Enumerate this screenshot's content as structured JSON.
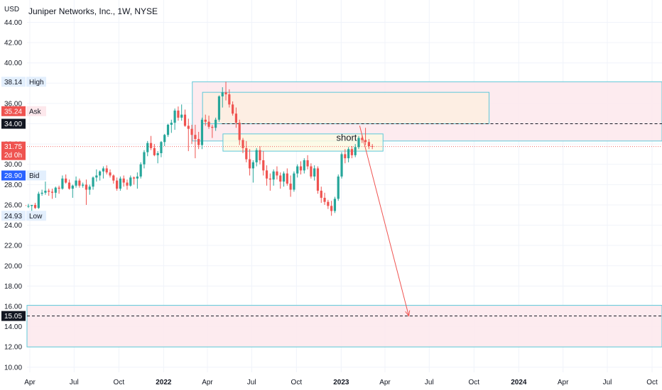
{
  "title": "Juniper Networks, Inc., 1W, NYSE",
  "currency": "USD",
  "colors": {
    "up": "#26a69a",
    "down": "#ef5350",
    "grid": "#f0f3fa",
    "zone_stroke": "#5ec8d8",
    "zone_fill_pink": "#fde8ec",
    "zone_fill_orange": "#fdeee0",
    "zone_fill_yellow": "#fdf9e3",
    "ask": "#ef5350",
    "bid": "#2962ff",
    "arrow": "#ef5350"
  },
  "chart_data": {
    "type": "candlestick",
    "interval": "1W",
    "ylim": [
      9.5,
      46.2
    ],
    "y_ticks": [
      "10.00",
      "12.00",
      "14.00",
      "16.00",
      "18.00",
      "20.00",
      "22.00",
      "24.00",
      "26.00",
      "28.00",
      "30.00",
      "32.00",
      "34.00",
      "36.00",
      "38.00",
      "40.00",
      "42.00",
      "44.00"
    ],
    "x_ticks": [
      "Apr",
      "Jul",
      "Oct",
      "2022",
      "Apr",
      "Jul",
      "Oct",
      "2023",
      "Apr",
      "Jul",
      "Oct",
      "2024",
      "Apr",
      "Jul",
      "Oct"
    ],
    "x_tick_dates": [
      "2021-04-01",
      "2021-07-01",
      "2021-10-01",
      "2022-01-01",
      "2022-04-01",
      "2022-07-01",
      "2022-10-01",
      "2023-01-01",
      "2023-04-01",
      "2023-07-01",
      "2023-10-01",
      "2024-01-01",
      "2024-04-01",
      "2024-07-01",
      "2024-10-01"
    ],
    "bold_ticks": [
      "2022",
      "2023",
      "2024"
    ],
    "price_labels": [
      {
        "value": 38.14,
        "label": "High",
        "style": "high"
      },
      {
        "value": 35.24,
        "label": "Ask",
        "style": "ask"
      },
      {
        "value": 34.0,
        "label": "",
        "style": "black"
      },
      {
        "value": 31.75,
        "label": "2d 0h",
        "style": "current"
      },
      {
        "value": 28.9,
        "label": "Bid",
        "style": "bid"
      },
      {
        "value": 24.93,
        "label": "Low",
        "style": "low"
      },
      {
        "value": 15.05,
        "label": "",
        "style": "black"
      }
    ],
    "annotations": [
      {
        "text": "short"
      }
    ],
    "zones": [
      {
        "from": "2022-03-01",
        "to": "2024-10-31",
        "top": 38.14,
        "bottom": 32.3,
        "fill": "pink"
      },
      {
        "from": "2022-03-22",
        "to": "2023-11-01",
        "top": 37.1,
        "bottom": 34.0,
        "fill": "orange"
      },
      {
        "from": "2022-05-03",
        "to": "2023-03-28",
        "top": 33.0,
        "bottom": 31.3,
        "fill": "yellow"
      },
      {
        "from": "2021-03-01",
        "to": "2024-10-31",
        "top": 16.1,
        "bottom": 12.0,
        "fill": "pink"
      }
    ],
    "levels": [
      {
        "value": 34.0,
        "from": "2022-05-01",
        "style": "dashed"
      },
      {
        "value": 15.05,
        "from": "2021-03-01",
        "style": "dashed"
      }
    ],
    "arrow": {
      "from_date": "2023-02-08",
      "from_value": 33.8,
      "to_date": "2023-05-20",
      "to_value": 15.05
    },
    "start_date": "2021-03-22",
    "candles": [
      [
        26.0,
        26.1,
        25.7,
        25.9
      ],
      [
        25.9,
        26.1,
        25.7,
        25.9
      ],
      [
        25.9,
        26.0,
        25.4,
        26.0
      ],
      [
        26.0,
        26.2,
        25.6,
        25.7
      ],
      [
        25.7,
        27.3,
        25.6,
        27.1
      ],
      [
        27.1,
        27.5,
        26.9,
        27.2
      ],
      [
        27.2,
        28.3,
        27.0,
        27.4
      ],
      [
        27.4,
        27.6,
        26.9,
        27.3
      ],
      [
        27.3,
        27.6,
        26.6,
        27.2
      ],
      [
        27.2,
        27.8,
        26.7,
        27.7
      ],
      [
        27.7,
        27.9,
        27.1,
        27.6
      ],
      [
        27.6,
        28.9,
        27.5,
        28.6
      ],
      [
        28.6,
        29.0,
        28.1,
        28.2
      ],
      [
        28.2,
        28.5,
        27.5,
        27.6
      ],
      [
        27.6,
        28.0,
        26.7,
        27.9
      ],
      [
        27.9,
        28.8,
        27.7,
        28.4
      ],
      [
        28.4,
        28.6,
        27.7,
        27.9
      ],
      [
        27.9,
        28.2,
        27.7,
        28.0
      ],
      [
        28.0,
        28.5,
        26.0,
        27.5
      ],
      [
        27.5,
        28.0,
        27.0,
        27.8
      ],
      [
        27.8,
        28.8,
        27.5,
        28.7
      ],
      [
        28.7,
        29.5,
        28.3,
        28.9
      ],
      [
        28.9,
        29.4,
        28.4,
        29.3
      ],
      [
        29.3,
        29.8,
        28.6,
        29.6
      ],
      [
        29.6,
        29.9,
        29.0,
        29.2
      ],
      [
        29.2,
        29.5,
        28.7,
        28.9
      ],
      [
        28.9,
        29.0,
        28.1,
        28.4
      ],
      [
        28.4,
        28.7,
        27.4,
        27.6
      ],
      [
        27.6,
        28.8,
        27.4,
        28.6
      ],
      [
        28.6,
        28.9,
        27.8,
        28.2
      ],
      [
        28.2,
        28.5,
        27.5,
        27.9
      ],
      [
        27.9,
        28.9,
        27.8,
        28.7
      ],
      [
        28.7,
        28.8,
        28.0,
        28.6
      ],
      [
        28.6,
        29.2,
        27.6,
        28.8
      ],
      [
        28.8,
        30.2,
        28.6,
        30.0
      ],
      [
        30.0,
        31.4,
        29.6,
        31.2
      ],
      [
        31.2,
        32.3,
        30.8,
        32.1
      ],
      [
        32.1,
        32.8,
        31.4,
        31.6
      ],
      [
        31.6,
        32.0,
        30.8,
        30.9
      ],
      [
        30.9,
        31.3,
        30.1,
        31.1
      ],
      [
        31.1,
        32.3,
        30.7,
        32.2
      ],
      [
        32.2,
        33.0,
        31.8,
        32.9
      ],
      [
        32.9,
        34.0,
        32.7,
        33.9
      ],
      [
        33.9,
        34.4,
        33.1,
        34.1
      ],
      [
        34.1,
        35.5,
        33.4,
        35.3
      ],
      [
        35.3,
        35.7,
        34.3,
        34.6
      ],
      [
        34.6,
        35.9,
        34.3,
        34.9
      ],
      [
        34.9,
        35.4,
        33.7,
        33.8
      ],
      [
        33.8,
        34.5,
        31.3,
        33.5
      ],
      [
        33.5,
        33.9,
        32.0,
        32.9
      ],
      [
        32.9,
        33.9,
        30.6,
        32.5
      ],
      [
        32.5,
        33.2,
        31.5,
        31.9
      ],
      [
        31.9,
        34.6,
        31.5,
        34.4
      ],
      [
        34.4,
        34.9,
        33.8,
        34.2
      ],
      [
        34.2,
        34.8,
        33.5,
        33.7
      ],
      [
        33.7,
        33.9,
        32.6,
        33.6
      ],
      [
        33.6,
        34.6,
        33.3,
        34.4
      ],
      [
        34.4,
        36.8,
        34.2,
        36.7
      ],
      [
        36.7,
        37.6,
        35.6,
        37.1
      ],
      [
        37.1,
        38.14,
        36.3,
        36.9
      ],
      [
        36.9,
        37.4,
        35.6,
        35.9
      ],
      [
        35.9,
        36.2,
        34.8,
        35.0
      ],
      [
        35.0,
        35.6,
        33.6,
        34.1
      ],
      [
        34.1,
        34.4,
        31.9,
        32.4
      ],
      [
        32.4,
        32.6,
        31.1,
        31.6
      ],
      [
        31.6,
        32.3,
        30.2,
        30.5
      ],
      [
        30.5,
        31.5,
        28.9,
        29.6
      ],
      [
        29.6,
        30.4,
        28.2,
        30.2
      ],
      [
        30.2,
        31.6,
        29.8,
        31.4
      ],
      [
        31.4,
        31.8,
        30.0,
        30.4
      ],
      [
        30.4,
        31.3,
        28.9,
        29.4
      ],
      [
        29.4,
        29.9,
        27.9,
        28.6
      ],
      [
        28.6,
        29.1,
        27.4,
        28.5
      ],
      [
        28.5,
        29.5,
        27.9,
        29.3
      ],
      [
        29.3,
        29.8,
        28.5,
        28.9
      ],
      [
        28.9,
        29.2,
        27.6,
        28.3
      ],
      [
        28.3,
        29.3,
        27.8,
        29.1
      ],
      [
        29.1,
        29.6,
        27.9,
        28.1
      ],
      [
        28.1,
        28.9,
        26.8,
        27.5
      ],
      [
        27.5,
        29.3,
        27.3,
        29.1
      ],
      [
        29.1,
        30.0,
        28.7,
        29.8
      ],
      [
        29.8,
        30.3,
        29.0,
        29.4
      ],
      [
        29.4,
        30.6,
        29.1,
        30.4
      ],
      [
        30.4,
        30.9,
        29.5,
        29.8
      ],
      [
        29.8,
        30.1,
        28.6,
        28.8
      ],
      [
        28.8,
        29.9,
        28.4,
        29.6
      ],
      [
        29.6,
        29.8,
        27.1,
        27.4
      ],
      [
        27.4,
        27.8,
        26.2,
        26.7
      ],
      [
        26.7,
        27.2,
        26.0,
        26.3
      ],
      [
        26.3,
        26.5,
        25.6,
        25.9
      ],
      [
        25.9,
        26.4,
        24.93,
        25.4
      ],
      [
        25.4,
        26.8,
        25.2,
        26.6
      ],
      [
        26.6,
        29.0,
        26.4,
        28.8
      ],
      [
        28.8,
        31.2,
        28.6,
        31.0
      ],
      [
        31.0,
        31.5,
        30.1,
        30.6
      ],
      [
        30.6,
        31.7,
        30.2,
        31.5
      ],
      [
        31.5,
        31.8,
        30.6,
        30.9
      ],
      [
        30.9,
        32.0,
        30.7,
        31.7
      ],
      [
        31.7,
        32.8,
        31.5,
        32.6
      ],
      [
        32.6,
        32.9,
        32.1,
        32.4
      ],
      [
        32.4,
        33.6,
        31.9,
        32.2
      ],
      [
        32.2,
        32.5,
        31.5,
        31.8
      ],
      [
        31.8,
        32.0,
        31.5,
        31.75
      ]
    ]
  }
}
